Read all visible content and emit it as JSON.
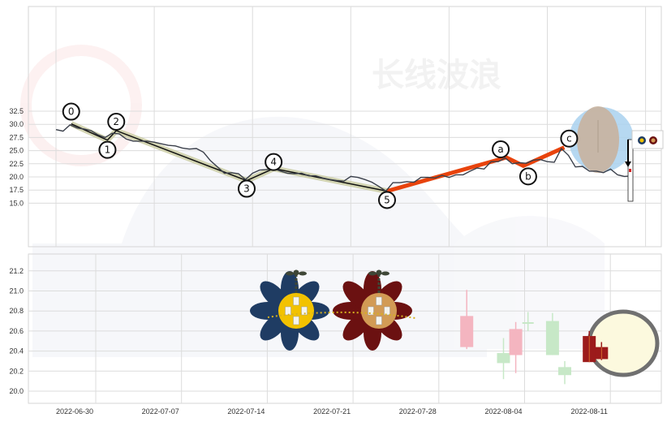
{
  "watermark": {
    "top_text": "长线波浪"
  },
  "colors": {
    "price_line": "#3a3f4a",
    "impulse_line": "#111111",
    "impulse_highlight": "#c9cba0",
    "correction_line": "#e8430c",
    "highlight_circle": "#a9d1ef",
    "highlight_ellipse": "#c8b39e",
    "candle_up_light": "#f4b5c0",
    "candle_down_light": "#c7e8c7",
    "candle_recent": "#9c1b1b",
    "candle_highlight_fill": "#fcf9de",
    "candle_highlight_stroke": "#707070",
    "flower_blue": "#1f3c63",
    "flower_blue_center": "#f2c200",
    "flower_red": "#6b1111",
    "flower_red_center": "#d29b55"
  },
  "chart_data": [
    {
      "type": "line",
      "panel": "top",
      "ylim": [
        15.0,
        32.5
      ],
      "yticks": [
        "15.0",
        "17.5",
        "20.0",
        "22.5",
        "25.0",
        "27.5",
        "30.0",
        "32.5"
      ],
      "grid": true,
      "price": [
        [
          "2022-06-30 00:00",
          29.0
        ],
        [
          "2022-06-30 12:00",
          28.7
        ],
        [
          "2022-07-01 00:00",
          29.9
        ],
        [
          "2022-07-01 12:00",
          29.3
        ],
        [
          "2022-07-02 00:00",
          29.1
        ],
        [
          "2022-07-02 12:00",
          28.8
        ],
        [
          "2022-07-03 00:00",
          28.0
        ],
        [
          "2022-07-03 12:00",
          27.5
        ],
        [
          "2022-07-04 00:00",
          28.3
        ],
        [
          "2022-07-04 12:00",
          28.2
        ],
        [
          "2022-07-05 00:00",
          27.2
        ],
        [
          "2022-07-05 12:00",
          26.8
        ],
        [
          "2022-07-06 00:00",
          26.8
        ],
        [
          "2022-07-06 12:00",
          26.8
        ],
        [
          "2022-07-07 00:00",
          26.6
        ],
        [
          "2022-07-07 12:00",
          26.3
        ],
        [
          "2022-07-08 00:00",
          26.0
        ],
        [
          "2022-07-08 12:00",
          25.9
        ],
        [
          "2022-07-09 00:00",
          25.5
        ],
        [
          "2022-07-09 12:00",
          25.3
        ],
        [
          "2022-07-10 00:00",
          25.4
        ],
        [
          "2022-07-10 12:00",
          24.7
        ],
        [
          "2022-07-11 00:00",
          23.1
        ],
        [
          "2022-07-11 12:00",
          21.9
        ],
        [
          "2022-07-12 00:00",
          20.7
        ],
        [
          "2022-07-12 12:00",
          20.8
        ],
        [
          "2022-07-13 00:00",
          20.6
        ],
        [
          "2022-07-13 12:00",
          19.5
        ],
        [
          "2022-07-14 00:00",
          20.7
        ],
        [
          "2022-07-14 12:00",
          21.3
        ],
        [
          "2022-07-15 00:00",
          21.4
        ],
        [
          "2022-07-15 12:00",
          21.6
        ],
        [
          "2022-07-16 00:00",
          21.1
        ],
        [
          "2022-07-16 12:00",
          20.7
        ],
        [
          "2022-07-17 00:00",
          20.6
        ],
        [
          "2022-07-17 12:00",
          20.7
        ],
        [
          "2022-07-18 00:00",
          20.2
        ],
        [
          "2022-07-18 12:00",
          20.2
        ],
        [
          "2022-07-19 00:00",
          19.8
        ],
        [
          "2022-07-19 12:00",
          19.5
        ],
        [
          "2022-07-20 00:00",
          19.3
        ],
        [
          "2022-07-20 12:00",
          19.2
        ],
        [
          "2022-07-21 00:00",
          20.1
        ],
        [
          "2022-07-21 12:00",
          19.9
        ],
        [
          "2022-07-22 00:00",
          19.5
        ],
        [
          "2022-07-22 12:00",
          19.0
        ],
        [
          "2022-07-23 00:00",
          18.2
        ],
        [
          "2022-07-23 12:00",
          17.3
        ],
        [
          "2022-07-24 00:00",
          18.9
        ],
        [
          "2022-07-24 12:00",
          18.9
        ],
        [
          "2022-07-25 00:00",
          19.1
        ],
        [
          "2022-07-25 12:00",
          19.0
        ],
        [
          "2022-07-26 00:00",
          19.9
        ],
        [
          "2022-07-26 12:00",
          19.9
        ],
        [
          "2022-07-27 00:00",
          19.8
        ],
        [
          "2022-07-27 12:00",
          20.3
        ],
        [
          "2022-07-28 00:00",
          19.9
        ],
        [
          "2022-07-28 12:00",
          20.4
        ],
        [
          "2022-07-29 00:00",
          20.4
        ],
        [
          "2022-07-29 12:00",
          21.1
        ],
        [
          "2022-07-30 00:00",
          21.7
        ],
        [
          "2022-07-30 12:00",
          21.5
        ],
        [
          "2022-07-31 00:00",
          22.9
        ],
        [
          "2022-07-31 12:00",
          22.9
        ],
        [
          "2022-08-01 00:00",
          23.6
        ],
        [
          "2022-08-01 12:00",
          22.5
        ],
        [
          "2022-08-02 00:00",
          22.7
        ],
        [
          "2022-08-02 12:00",
          22.6
        ],
        [
          "2022-08-03 00:00",
          23.2
        ],
        [
          "2022-08-03 12:00",
          23.3
        ],
        [
          "2022-08-04 00:00",
          22.9
        ],
        [
          "2022-08-04 12:00",
          22.8
        ],
        [
          "2022-08-05 00:00",
          25.4
        ],
        [
          "2022-08-05 12:00",
          24.1
        ],
        [
          "2022-08-06 00:00",
          21.9
        ],
        [
          "2022-08-06 12:00",
          22.0
        ],
        [
          "2022-08-07 00:00",
          21.1
        ],
        [
          "2022-08-07 12:00",
          21.1
        ],
        [
          "2022-08-08 00:00",
          20.8
        ],
        [
          "2022-08-08 12:00",
          21.5
        ],
        [
          "2022-08-09 00:00",
          20.4
        ],
        [
          "2022-08-09 12:00",
          20.1
        ],
        [
          "2022-08-10 00:00",
          20.2
        ]
      ],
      "impulse_waves": [
        {
          "label": "0",
          "date": "2022-07-01 02:00",
          "value": 30.1
        },
        {
          "label": "1",
          "date": "2022-07-03 16:00",
          "value": 27.0
        },
        {
          "label": "2",
          "date": "2022-07-04 07:00",
          "value": 28.8
        },
        {
          "label": "3",
          "date": "2022-07-13 14:00",
          "value": 19.3
        },
        {
          "label": "4",
          "date": "2022-07-15 12:00",
          "value": 21.6
        },
        {
          "label": "5",
          "date": "2022-07-23 14:00",
          "value": 17.3
        }
      ],
      "corrective_waves": [
        {
          "label": "5",
          "date": "2022-07-23 14:00",
          "value": 17.3
        },
        {
          "label": "a",
          "date": "2022-08-01 02:00",
          "value": 23.7
        },
        {
          "label": "b",
          "date": "2022-08-02 07:00",
          "value": 22.1
        },
        {
          "label": "c",
          "date": "2022-08-05 05:00",
          "value": 25.6
        }
      ]
    },
    {
      "type": "candlestick",
      "panel": "bottom",
      "ylim": [
        19.9,
        21.35
      ],
      "yticks": [
        "20.0",
        "20.2",
        "20.4",
        "20.6",
        "20.8",
        "21.0",
        "21.2"
      ],
      "xticks": [
        "2022-06-30",
        "2022-07-07",
        "2022-07-14",
        "2022-07-21",
        "2022-07-28",
        "2022-08-04",
        "2022-08-11"
      ],
      "grid": true,
      "candles": [
        {
          "date": "2022-08-01",
          "open": 20.44,
          "close": 20.75,
          "high": 21.01,
          "low": 20.42,
          "style": "up_light"
        },
        {
          "date": "2022-08-04",
          "open": 20.38,
          "close": 20.28,
          "high": 20.53,
          "low": 20.12,
          "style": "down_light"
        },
        {
          "date": "2022-08-05",
          "open": 20.36,
          "close": 20.62,
          "high": 20.69,
          "low": 20.18,
          "style": "up_light"
        },
        {
          "date": "2022-08-06",
          "open": 20.68,
          "close": 20.68,
          "high": 20.79,
          "low": 20.6,
          "style": "down_light"
        },
        {
          "date": "2022-08-08",
          "open": 20.7,
          "close": 20.36,
          "high": 20.78,
          "low": 20.36,
          "style": "down_light"
        },
        {
          "date": "2022-08-09",
          "open": 20.24,
          "close": 20.16,
          "high": 20.3,
          "low": 20.07,
          "style": "down_light"
        },
        {
          "date": "2022-08-11",
          "open": 20.29,
          "close": 20.55,
          "high": 20.6,
          "low": 20.29,
          "style": "recent"
        },
        {
          "date": "2022-08-12",
          "open": 20.32,
          "close": 20.44,
          "high": 20.49,
          "low": 20.31,
          "style": "recent"
        }
      ]
    }
  ]
}
